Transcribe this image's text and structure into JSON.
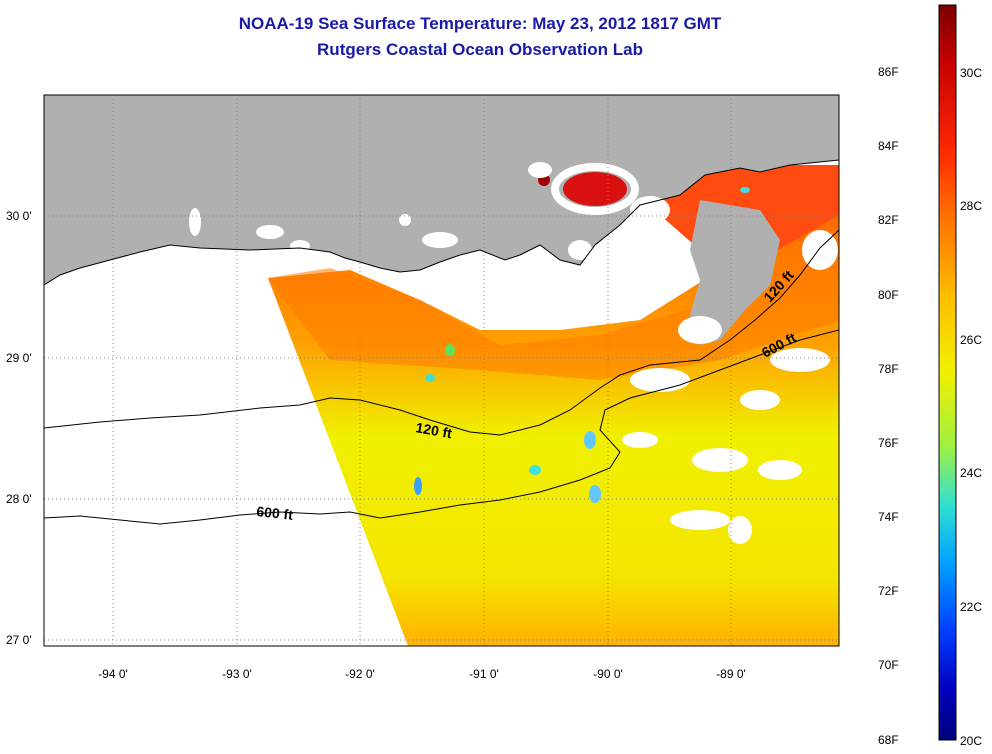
{
  "title": {
    "line1": "NOAA-19 Sea Surface Temperature:  May 23, 2012 1817 GMT",
    "line2": "Rutgers Coastal Ocean Observation Lab"
  },
  "map": {
    "lat_labels": [
      "30 0'",
      "29 0'",
      "28 0'",
      "27 0'"
    ],
    "lon_labels": [
      "-94 0'",
      "-93 0'",
      "-92 0'",
      "-91 0'",
      "-90 0'",
      "-89 0'"
    ],
    "contour_labels": [
      "120 ft",
      "600 ft",
      "120 ft",
      "600 ft"
    ],
    "colors": {
      "land": "#b0b0b0",
      "cloud": "#ffffff",
      "gridline": "#888888"
    }
  },
  "colorbar": {
    "fahrenheit_labels": [
      "86F",
      "84F",
      "82F",
      "80F",
      "78F",
      "76F",
      "74F",
      "72F",
      "70F",
      "68F"
    ],
    "celsius_labels": [
      "30C",
      "28C",
      "26C",
      "24C",
      "22C",
      "20C"
    ],
    "gradient": [
      "#7a0000",
      "#c80000",
      "#ff2a00",
      "#ff7a00",
      "#ffc000",
      "#f0f000",
      "#a0f040",
      "#30e0d0",
      "#00a0ff",
      "#0040ff",
      "#0000c0",
      "#00007a"
    ]
  }
}
